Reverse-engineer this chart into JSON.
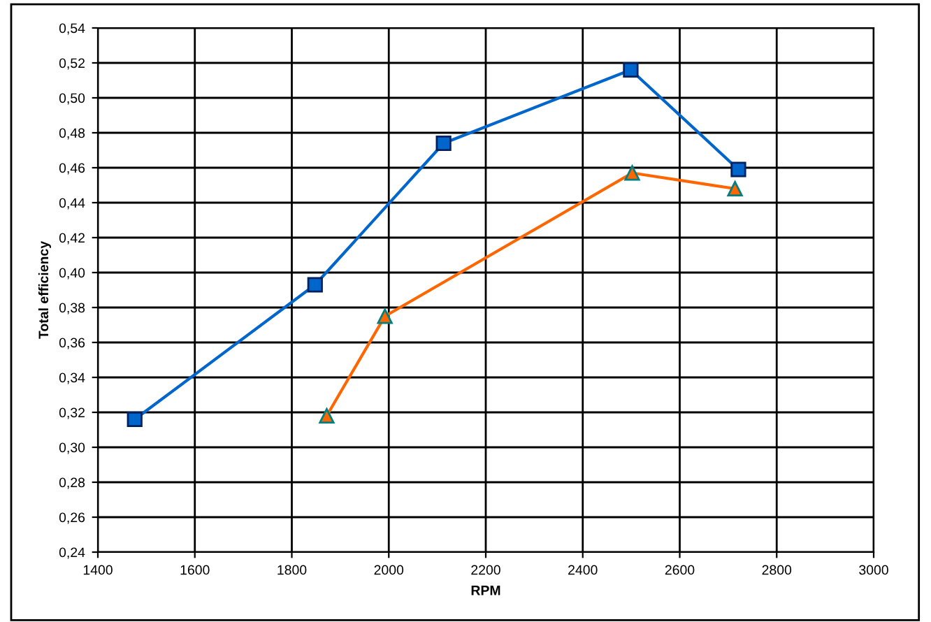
{
  "chart_data": {
    "type": "line",
    "xlabel": "RPM",
    "ylabel": "Total efficiency",
    "xlim": [
      1400,
      3000
    ],
    "xticks": [
      1400,
      1600,
      1800,
      2000,
      2200,
      2400,
      2600,
      2800,
      3000
    ],
    "ylim": [
      0.24,
      0.54
    ],
    "yticks": [
      {
        "value": 0.24,
        "label": "0,24"
      },
      {
        "value": 0.26,
        "label": "0,26"
      },
      {
        "value": 0.28,
        "label": "0,28"
      },
      {
        "value": 0.3,
        "label": "0,30"
      },
      {
        "value": 0.32,
        "label": "0,32"
      },
      {
        "value": 0.34,
        "label": "0,34"
      },
      {
        "value": 0.36,
        "label": "0,36"
      },
      {
        "value": 0.38,
        "label": "0,38"
      },
      {
        "value": 0.4,
        "label": "0,40"
      },
      {
        "value": 0.42,
        "label": "0,42"
      },
      {
        "value": 0.44,
        "label": "0,44"
      },
      {
        "value": 0.46,
        "label": "0,46"
      },
      {
        "value": 0.48,
        "label": "0,48"
      },
      {
        "value": 0.5,
        "label": "0,50"
      },
      {
        "value": 0.52,
        "label": "0,52"
      },
      {
        "value": 0.54,
        "label": "0,54"
      }
    ],
    "grid": true,
    "legend": false,
    "series": [
      {
        "color": "#0066cc",
        "marker": "square",
        "x": [
          1476,
          1848,
          2113,
          2499,
          2721
        ],
        "values": [
          0.316,
          0.393,
          0.474,
          0.516,
          0.459
        ]
      },
      {
        "color": "#ff6600",
        "marker": "triangle",
        "x": [
          1872,
          1992,
          2502,
          2714
        ],
        "values": [
          0.318,
          0.375,
          0.457,
          0.448
        ]
      }
    ]
  }
}
